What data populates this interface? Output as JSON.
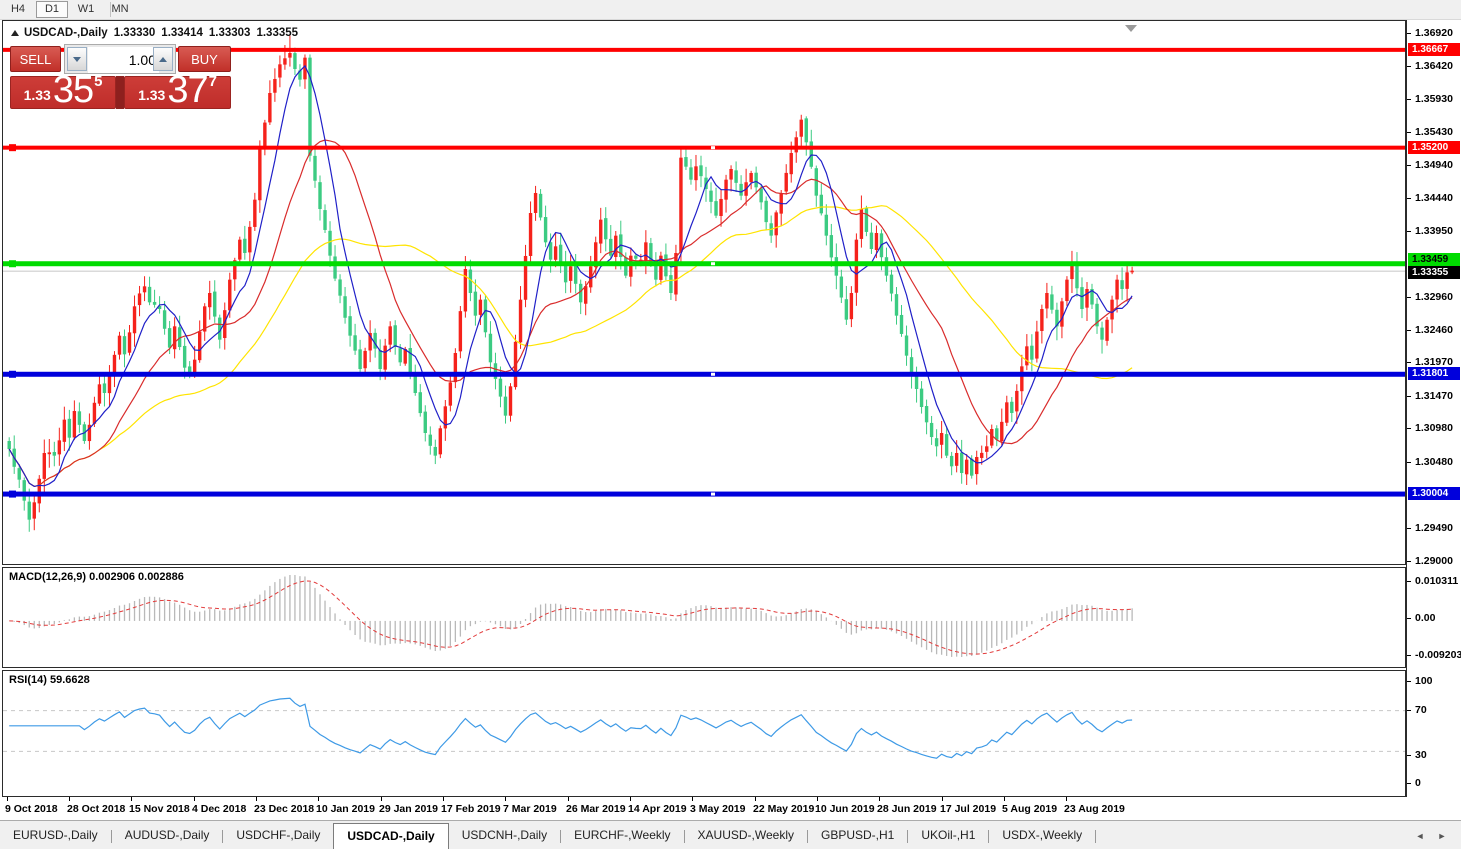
{
  "toolbar": {
    "timeframes": [
      {
        "label": "H4",
        "active": false
      },
      {
        "label": "D1",
        "active": true
      },
      {
        "label": "W1",
        "active": false
      },
      {
        "label": "MN",
        "active": false
      }
    ]
  },
  "chart_title": {
    "symbol_period": "USDCAD-,Daily",
    "open": "1.33330",
    "high": "1.33414",
    "low": "1.33303",
    "close": "1.33355"
  },
  "one_click": {
    "sell_label": "SELL",
    "buy_label": "BUY",
    "volume": "1.00",
    "sell_price_small": "1.33",
    "sell_price_big": "35",
    "sell_price_sup": "5",
    "buy_price_small": "1.33",
    "buy_price_big": "37",
    "buy_price_sup": "7"
  },
  "macd": {
    "label": "MACD(12,26,9) 0.002906 0.002886",
    "ticks": [
      "0.010311",
      "0.00",
      "-0.009203"
    ]
  },
  "rsi": {
    "label": "RSI(14) 59.6628",
    "ticks": [
      "100",
      "70",
      "30",
      "0"
    ],
    "levels": [
      70,
      30
    ]
  },
  "date_axis": [
    "9 Oct 2018",
    "28 Oct 2018",
    "15 Nov 2018",
    "4 Dec 2018",
    "23 Dec 2018",
    "10 Jan 2019",
    "29 Jan 2019",
    "17 Feb 2019",
    "7 Mar 2019",
    "26 Mar 2019",
    "14 Apr 2019",
    "3 May 2019",
    "22 May 2019",
    "10 Jun 2019",
    "28 Jun 2019",
    "17 Jul 2019",
    "5 Aug 2019",
    "23 Aug 2019"
  ],
  "tabs": [
    {
      "label": "EURUSD-,Daily",
      "active": false
    },
    {
      "label": "AUDUSD-,Daily",
      "active": false
    },
    {
      "label": "USDCHF-,Daily",
      "active": false
    },
    {
      "label": "USDCAD-,Daily",
      "active": true
    },
    {
      "label": "USDCNH-,Daily",
      "active": false
    },
    {
      "label": "EURCHF-,Weekly",
      "active": false
    },
    {
      "label": "XAUUSD-,Weekly",
      "active": false
    },
    {
      "label": "GBPUSD-,H1",
      "active": false
    },
    {
      "label": "UKOil-,H1",
      "active": false
    },
    {
      "label": "USDX-,Weekly",
      "active": false
    }
  ],
  "colors": {
    "bull_candle": "#f5221b",
    "bear_candle": "#3ccb82",
    "ma_fast_blue": "#2020c8",
    "ma_mid_red": "#d92c2c",
    "ma_slow_yellow": "#ffe400",
    "hline_red": "#ff0000",
    "hline_green": "#00dc00",
    "hline_blue": "#0000dc",
    "current_price_line": "#c8c8c8",
    "macd_hist": "#b9b9b9",
    "macd_signal": "#e23b3b",
    "rsi_line": "#3e9ae6"
  },
  "chart_data": {
    "type": "candlestick",
    "symbol": "USDCAD-",
    "timeframe": "Daily",
    "last_candle_ohlc": {
      "open": 1.3333,
      "high": 1.33414,
      "low": 1.33303,
      "close": 1.33355
    },
    "current_bid": 1.33355,
    "current_ask": 1.33377,
    "y_axis": {
      "price_top": 1.3692,
      "price_top_y": 33,
      "price_bottom": 1.29,
      "price_bottom_y": 561,
      "ticks": [
        "1.36920",
        "1.36420",
        "1.35930",
        "1.35430",
        "1.34940",
        "1.34440",
        "1.33950",
        "1.32960",
        "1.32460",
        "1.31970",
        "1.31470",
        "1.30980",
        "1.30480",
        "1.29490",
        "1.29000"
      ]
    },
    "badges": [
      {
        "label": "1.36667",
        "price": 1.36667,
        "bg": "#ff0000",
        "fg": "#ffffff"
      },
      {
        "label": "1.35200",
        "price": 1.352,
        "bg": "#ff0000",
        "fg": "#ffffff"
      },
      {
        "label": "1.33459",
        "price": 1.33459,
        "bg": "#00dc00",
        "fg": "#000000"
      },
      {
        "label": "1.33355",
        "price": 1.33355,
        "bg": "#000000",
        "fg": "#ffffff"
      },
      {
        "label": "1.31801",
        "price": 1.31801,
        "bg": "#0000dc",
        "fg": "#ffffff"
      },
      {
        "label": "1.30004",
        "price": 1.30004,
        "bg": "#0000dc",
        "fg": "#ffffff"
      }
    ],
    "horizontal_lines": [
      {
        "price": 1.36667,
        "color": "#ff0000",
        "thickness": 4,
        "handles": false
      },
      {
        "price": 1.352,
        "color": "#ff0000",
        "thickness": 4,
        "handles": true
      },
      {
        "price": 1.33459,
        "color": "#00dc00",
        "thickness": 5,
        "handles": true
      },
      {
        "price": 1.31801,
        "color": "#0000dc",
        "thickness": 5,
        "handles": true
      },
      {
        "price": 1.30004,
        "color": "#0000dc",
        "thickness": 5,
        "handles": true
      }
    ],
    "candle_count": 225,
    "first_x": 4.5,
    "spacing": 5.013,
    "body_width": 3.4,
    "close_anchors": [
      [
        0,
        1.3068
      ],
      [
        2,
        1.3022
      ],
      [
        4,
        1.2962
      ],
      [
        5,
        1.2988
      ],
      [
        7,
        1.3062
      ],
      [
        9,
        1.3058
      ],
      [
        11,
        1.3112
      ],
      [
        12,
        1.3085
      ],
      [
        13,
        1.3125
      ],
      [
        15,
        1.308
      ],
      [
        18,
        1.3165
      ],
      [
        19,
        1.3152
      ],
      [
        22,
        1.3238
      ],
      [
        23,
        1.321
      ],
      [
        25,
        1.3282
      ],
      [
        27,
        1.3312
      ],
      [
        28,
        1.3288
      ],
      [
        30,
        1.3278
      ],
      [
        32,
        1.322
      ],
      [
        33,
        1.3252
      ],
      [
        35,
        1.319
      ],
      [
        36,
        1.3182
      ],
      [
        37,
        1.3202
      ],
      [
        39,
        1.3282
      ],
      [
        40,
        1.3302
      ],
      [
        42,
        1.3232
      ],
      [
        44,
        1.3322
      ],
      [
        46,
        1.3382
      ],
      [
        47,
        1.3362
      ],
      [
        49,
        1.3442
      ],
      [
        50,
        1.3518
      ],
      [
        52,
        1.3602
      ],
      [
        54,
        1.3645
      ],
      [
        56,
        1.3662
      ],
      [
        57,
        1.3638
      ],
      [
        58,
        1.3622
      ],
      [
        59,
        1.3655
      ],
      [
        60,
        1.3508
      ],
      [
        62,
        1.3428
      ],
      [
        64,
        1.3358
      ],
      [
        66,
        1.3298
      ],
      [
        68,
        1.3238
      ],
      [
        70,
        1.3188
      ],
      [
        72,
        1.3242
      ],
      [
        74,
        1.3188
      ],
      [
        76,
        1.3252
      ],
      [
        78,
        1.3198
      ],
      [
        79,
        1.3218
      ],
      [
        81,
        1.3152
      ],
      [
        83,
        1.3092
      ],
      [
        85,
        1.3058
      ],
      [
        87,
        1.3132
      ],
      [
        89,
        1.3212
      ],
      [
        91,
        1.3338
      ],
      [
        92,
        1.3302
      ],
      [
        93,
        1.3268
      ],
      [
        94,
        1.3292
      ],
      [
        96,
        1.3198
      ],
      [
        99,
        1.3118
      ],
      [
        100,
        1.3162
      ],
      [
        102,
        1.3292
      ],
      [
        104,
        1.3422
      ],
      [
        105,
        1.3452
      ],
      [
        107,
        1.3378
      ],
      [
        108,
        1.3352
      ],
      [
        109,
        1.3372
      ],
      [
        111,
        1.3318
      ],
      [
        112,
        1.3342
      ],
      [
        114,
        1.3288
      ],
      [
        116,
        1.3342
      ],
      [
        118,
        1.3412
      ],
      [
        120,
        1.3358
      ],
      [
        121,
        1.3388
      ],
      [
        123,
        1.3328
      ],
      [
        124,
        1.3358
      ],
      [
        126,
        1.3352
      ],
      [
        127,
        1.3378
      ],
      [
        129,
        1.3322
      ],
      [
        130,
        1.3358
      ],
      [
        132,
        1.3302
      ],
      [
        133,
        1.3362
      ],
      [
        134,
        1.3505
      ],
      [
        136,
        1.3472
      ],
      [
        137,
        1.3492
      ],
      [
        139,
        1.3458
      ],
      [
        141,
        1.3418
      ],
      [
        143,
        1.3472
      ],
      [
        144,
        1.3488
      ],
      [
        146,
        1.3448
      ],
      [
        148,
        1.3482
      ],
      [
        150,
        1.3438
      ],
      [
        152,
        1.3388
      ],
      [
        154,
        1.3452
      ],
      [
        156,
        1.3512
      ],
      [
        158,
        1.3562
      ],
      [
        159,
        1.3528
      ],
      [
        161,
        1.3448
      ],
      [
        163,
        1.3388
      ],
      [
        165,
        1.3328
      ],
      [
        167,
        1.3262
      ],
      [
        168,
        1.3302
      ],
      [
        169,
        1.3382
      ],
      [
        170,
        1.3428
      ],
      [
        172,
        1.3368
      ],
      [
        173,
        1.3392
      ],
      [
        175,
        1.3328
      ],
      [
        177,
        1.3268
      ],
      [
        179,
        1.3208
      ],
      [
        181,
        1.3158
      ],
      [
        183,
        1.3108
      ],
      [
        185,
        1.3072
      ],
      [
        186,
        1.3092
      ],
      [
        187,
        1.3058
      ],
      [
        188,
        1.3042
      ],
      [
        189,
        1.3062
      ],
      [
        190,
        1.3032
      ],
      [
        191,
        1.3052
      ],
      [
        192,
        1.3028
      ],
      [
        193,
        1.3056
      ],
      [
        195,
        1.3072
      ],
      [
        196,
        1.3098
      ],
      [
        197,
        1.3082
      ],
      [
        199,
        1.3138
      ],
      [
        200,
        1.3122
      ],
      [
        202,
        1.3192
      ],
      [
        203,
        1.3222
      ],
      [
        204,
        1.3202
      ],
      [
        206,
        1.3278
      ],
      [
        207,
        1.3302
      ],
      [
        209,
        1.3252
      ],
      [
        211,
        1.3322
      ],
      [
        212,
        1.3348
      ],
      [
        214,
        1.3278
      ],
      [
        215,
        1.3308
      ],
      [
        217,
        1.3252
      ],
      [
        218,
        1.3232
      ],
      [
        220,
        1.3292
      ],
      [
        221,
        1.3322
      ],
      [
        222,
        1.3308
      ],
      [
        223,
        1.3333
      ],
      [
        224,
        1.33355
      ]
    ],
    "moving_averages": [
      {
        "name": "fast",
        "window": 7,
        "color": "#2020c8"
      },
      {
        "name": "mid",
        "window": 18,
        "color": "#d92c2c"
      },
      {
        "name": "slow",
        "window": 42,
        "color": "#ffe400"
      }
    ],
    "indicators": [
      {
        "name": "MACD",
        "params": [
          12,
          26,
          9
        ],
        "current_macd": 0.002906,
        "current_signal": 0.002886,
        "axis_max": 0.010311,
        "axis_min": -0.009203
      },
      {
        "name": "RSI",
        "params": [
          14
        ],
        "current": 59.6628,
        "levels": [
          70,
          30
        ],
        "axis": [
          0,
          100
        ]
      }
    ]
  }
}
